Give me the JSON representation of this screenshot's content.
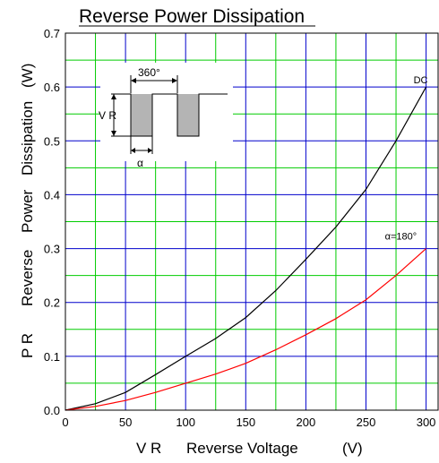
{
  "chart_data": {
    "type": "line",
    "title": "Reverse Power Dissipation",
    "xlabel_parts": [
      "V R",
      "Reverse Voltage",
      "(V)"
    ],
    "ylabel_parts": [
      "P R",
      "Reverse",
      "Power",
      "Dissipation",
      "(W)"
    ],
    "xlim": [
      0,
      310
    ],
    "ylim": [
      0,
      0.7
    ],
    "x_ticks": [
      0,
      50,
      100,
      150,
      200,
      250,
      300
    ],
    "x_tick_labels": [
      "0",
      "50",
      "100",
      "150",
      "200",
      "250",
      "300"
    ],
    "y_ticks": [
      0.0,
      0.1,
      0.2,
      0.3,
      0.4,
      0.5,
      0.6,
      0.7
    ],
    "y_tick_labels": [
      "0.0",
      "0.1",
      "0.2",
      "0.3",
      "0.4",
      "0.5",
      "0.6",
      "0.7"
    ],
    "grid": true,
    "grid_major_color": "#0000cc",
    "grid_minor_color": "#00cc00",
    "series": [
      {
        "name": "DC",
        "color": "#000000",
        "x": [
          0,
          25,
          50,
          75,
          100,
          125,
          150,
          175,
          200,
          225,
          250,
          275,
          300
        ],
        "y": [
          0,
          0.012,
          0.033,
          0.066,
          0.1,
          0.133,
          0.172,
          0.222,
          0.28,
          0.34,
          0.41,
          0.5,
          0.6
        ]
      },
      {
        "name": "α=180°",
        "color": "#ff0000",
        "x": [
          0,
          25,
          50,
          75,
          100,
          125,
          150,
          175,
          200,
          225,
          250,
          275,
          300
        ],
        "y": [
          0,
          0.007,
          0.018,
          0.033,
          0.05,
          0.067,
          0.087,
          0.112,
          0.14,
          0.17,
          0.205,
          0.25,
          0.3
        ]
      }
    ],
    "inset": {
      "period_label": "360°",
      "vr_label": "V R",
      "alpha_label": "α"
    }
  }
}
